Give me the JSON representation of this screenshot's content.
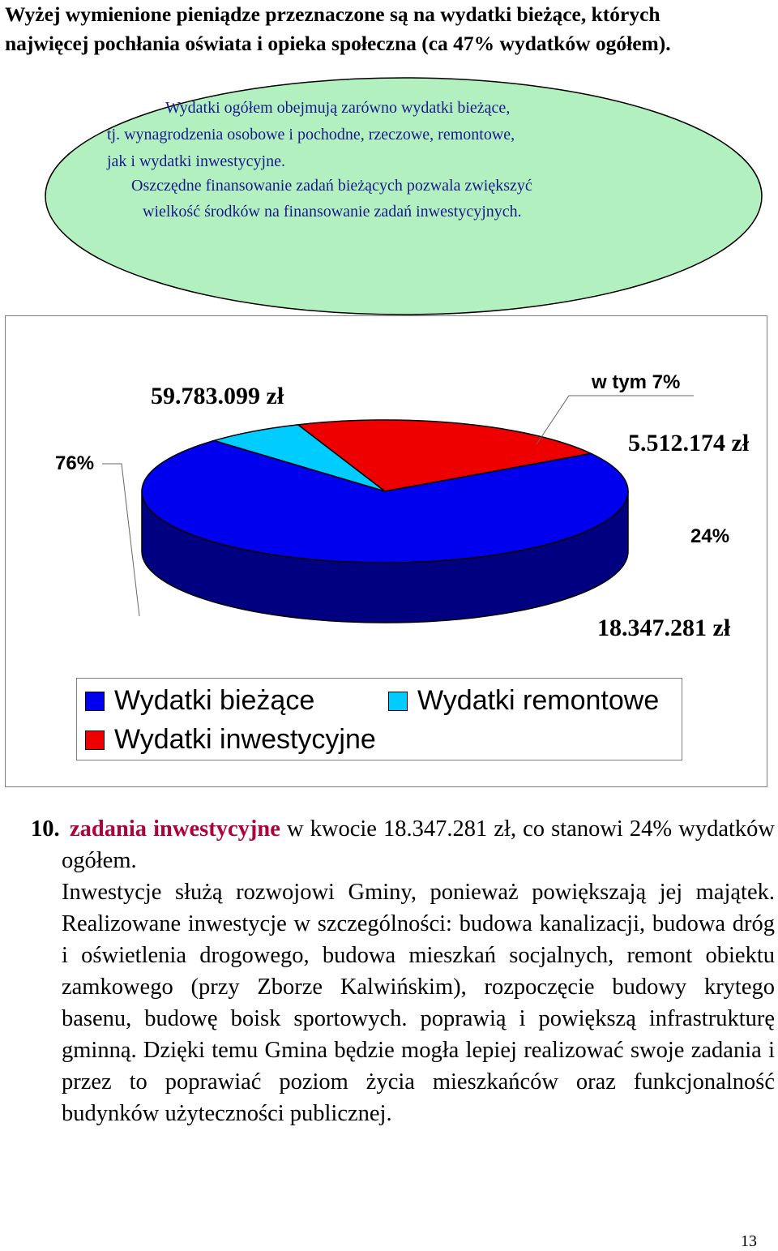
{
  "intro": {
    "line1": "Wyżej wymienione pieniądze przeznaczone są na wydatki bieżące, których",
    "line2": "najwięcej pochłania oświata i opieka społeczna (ca 47% wydatków ogółem)."
  },
  "callout": {
    "lines": [
      "Wydatki ogółem obejmują zarówno wydatki bieżące,",
      "tj. wynagrodzenia osobowe i pochodne, rzeczowe, remontowe,",
      "jak i wydatki inwestycyjne.",
      "Oszczędne finansowanie zadań bieżących pozwala zwiększyć",
      "wielkość środków na finansowanie zadań inwestycyjnych."
    ],
    "fill_color": "#b2f0c0"
  },
  "chart_data": {
    "type": "pie",
    "labels": [
      "Wydatki bieżące",
      "Wydatki remontowe",
      "Wydatki inwestycyjne"
    ],
    "values": [
      59783099,
      5512174,
      18347281
    ],
    "value_labels": [
      "59.783.099 zł",
      "5.512.174 zł",
      "18.347.281 zł"
    ],
    "percent_labels": [
      "76%",
      "w tym 7%",
      "24%"
    ],
    "colors": [
      "#0000ee",
      "#00ccff",
      "#ee0000"
    ],
    "side_colors": [
      "#000080",
      "#006b80",
      "#7a0000"
    ],
    "legend": [
      "Wydatki bieżące",
      "Wydatki remontowe",
      "Wydatki inwestycyjne"
    ],
    "legend_position": "bottom",
    "style": "3d"
  },
  "section": {
    "number": "10.",
    "highlight": "zadania inwestycyjne",
    "rest_line1": " w kwocie 18.347.281 zł, co stanowi 24% wydatków ogółem.",
    "paragraph": "Inwestycje służą rozwojowi Gminy, ponieważ powiększają jej majątek. Realizowane inwestycje w szczególności: budowa kanalizacji, budowa dróg i oświetlenia drogowego, budowa mieszkań socjalnych, remont obiektu zamkowego (przy Zborze Kalwińskim), rozpoczęcie budowy krytego basenu, budowę boisk sportowych. poprawią i powiększą infrastrukturę gminną. Dzięki temu Gmina będzie mogła lepiej realizować swoje zadania i przez to poprawiać poziom życia mieszkańców oraz funkcjonalność budynków użyteczności publicznej."
  },
  "page_number": "13"
}
